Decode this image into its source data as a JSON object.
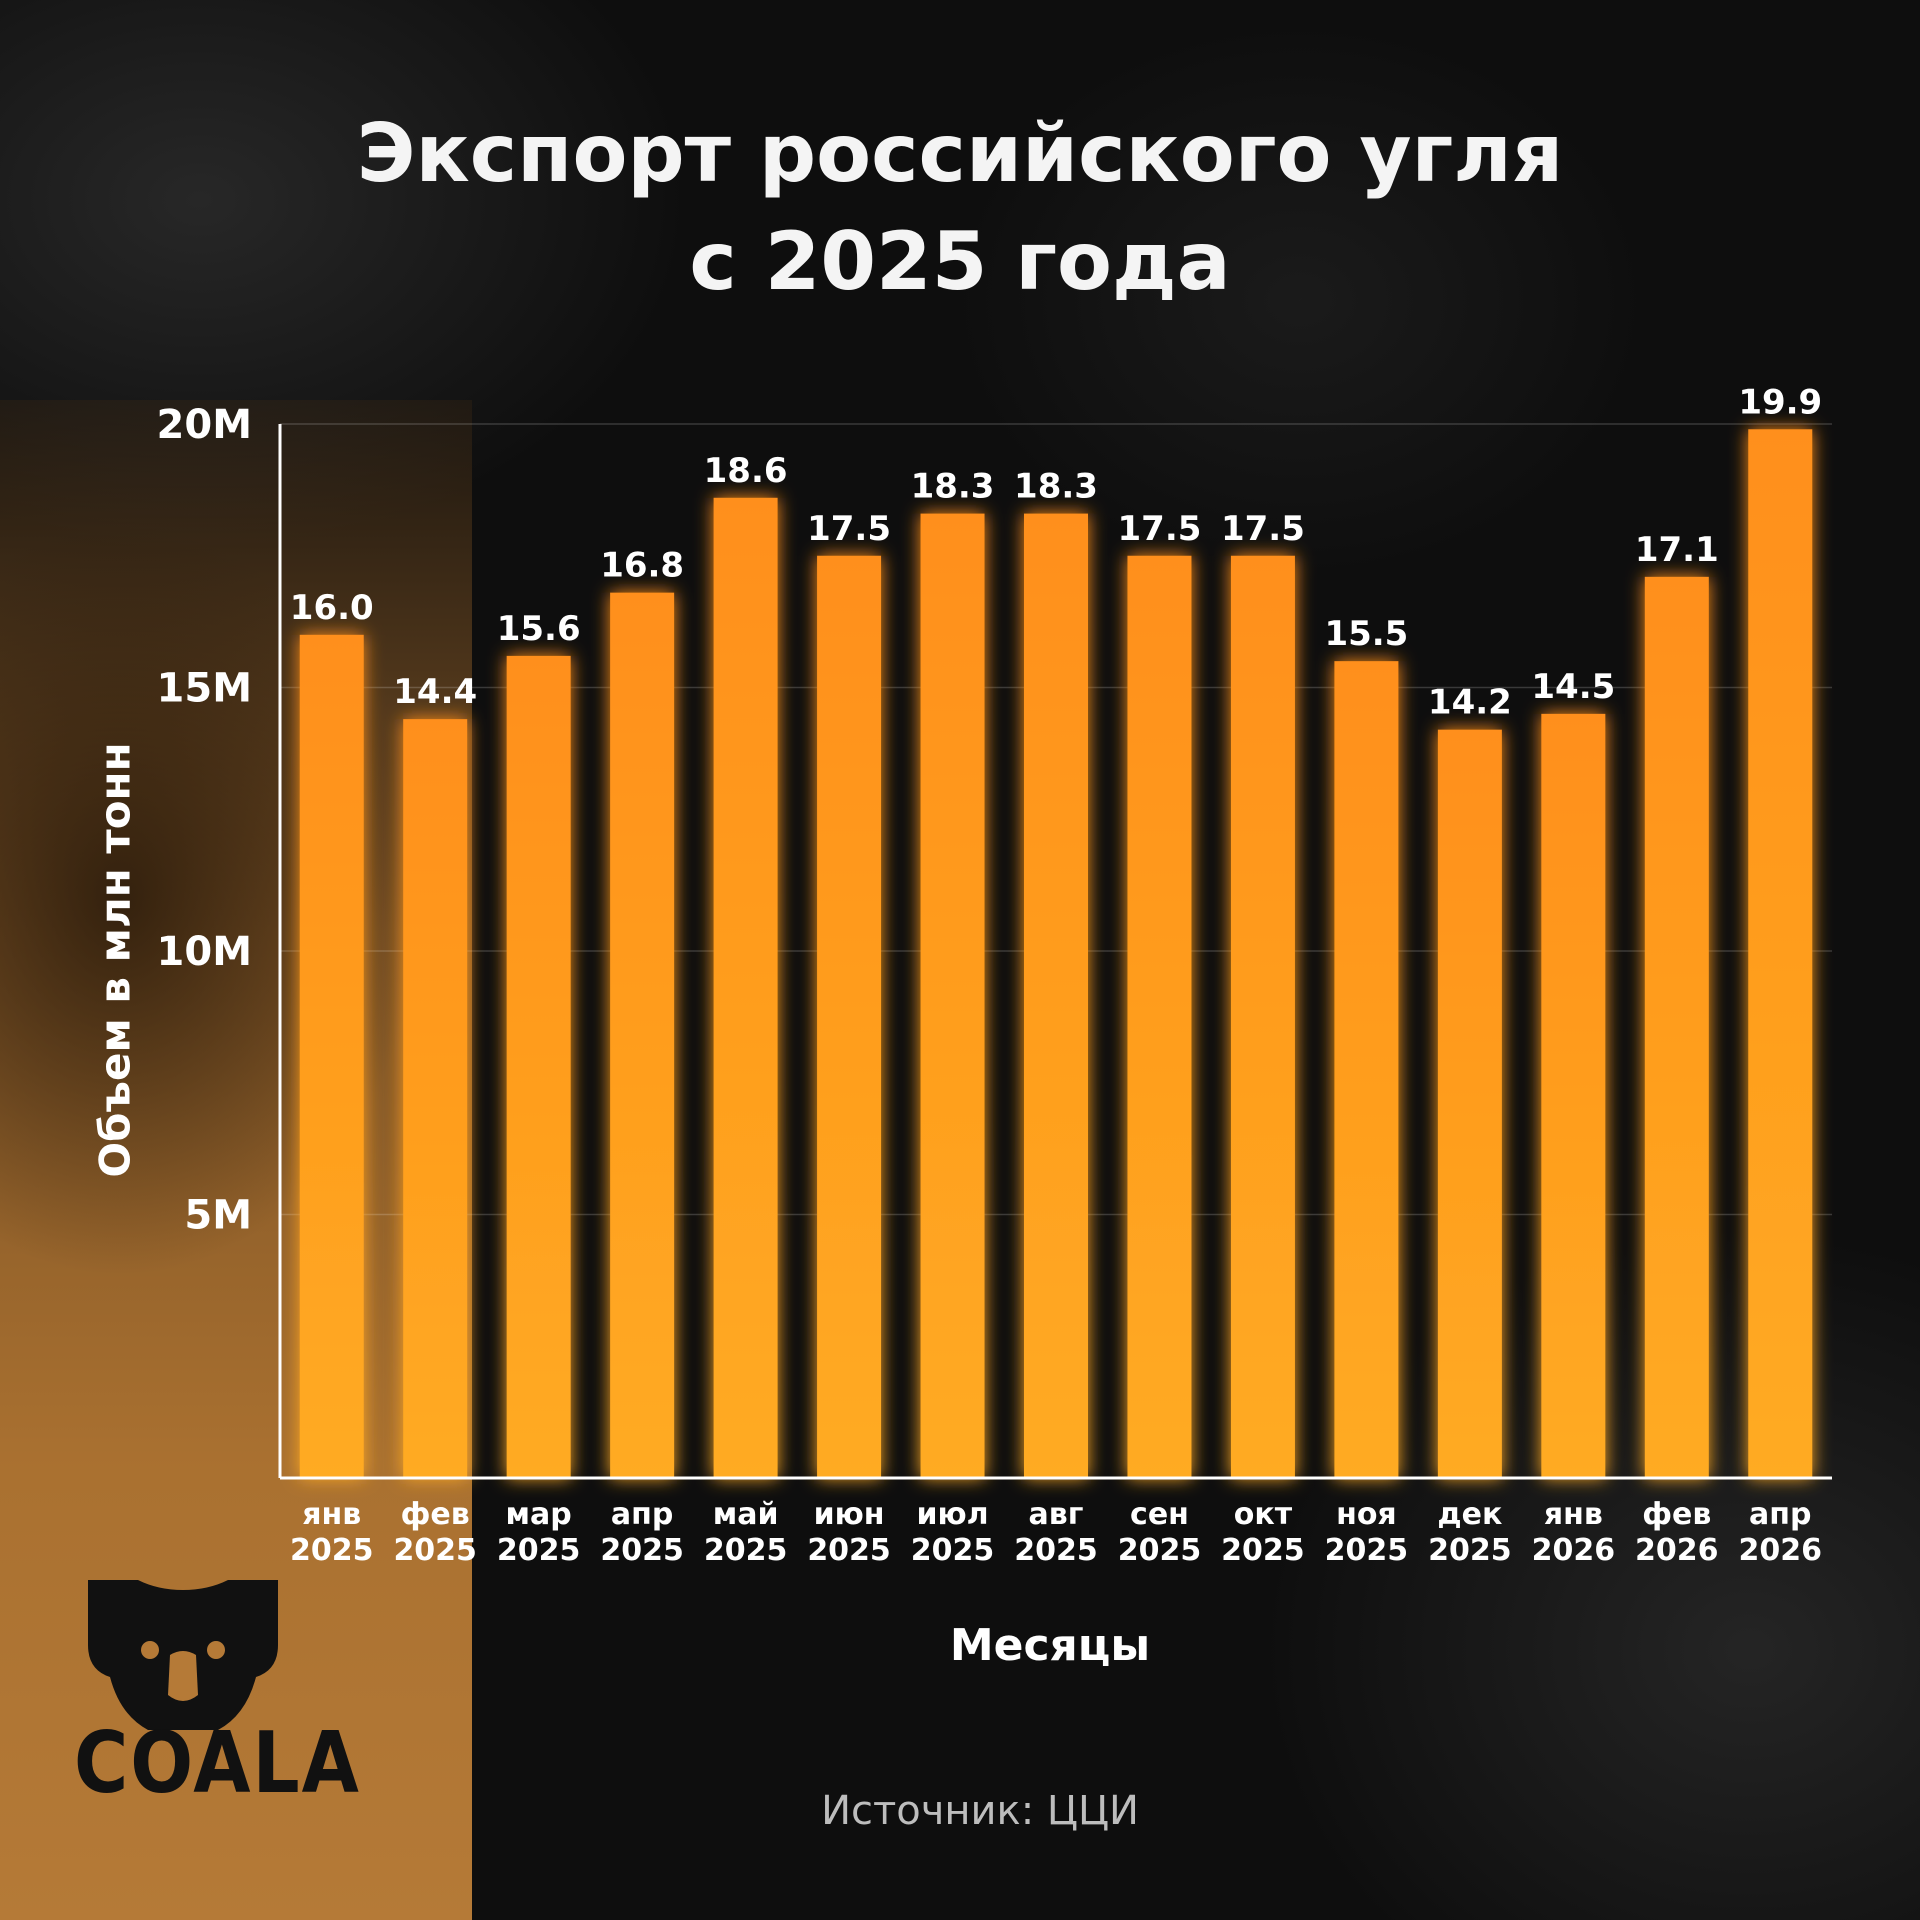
{
  "title_line1": "Экспорт российского угля",
  "title_line2": "с 2025 года",
  "source": "Источник: ЦЦИ",
  "logo_text": "COALA",
  "colors": {
    "bar_top": "#ff8f1a",
    "bar_bottom": "#ffab22",
    "background": "#0e0e0e"
  },
  "chart_data": {
    "type": "bar",
    "title": "Экспорт российского угля с 2025 года",
    "xlabel": "Месяцы",
    "ylabel": "Объем в млн тонн",
    "ylim": [
      0,
      20
    ],
    "yticks": [
      {
        "value": 5,
        "label": "5M"
      },
      {
        "value": 10,
        "label": "10M"
      },
      {
        "value": 15,
        "label": "15M"
      },
      {
        "value": 20,
        "label": "20M"
      }
    ],
    "grid": true,
    "categories": [
      {
        "month": "янв",
        "year": "2025"
      },
      {
        "month": "фев",
        "year": "2025"
      },
      {
        "month": "мар",
        "year": "2025"
      },
      {
        "month": "апр",
        "year": "2025"
      },
      {
        "month": "май",
        "year": "2025"
      },
      {
        "month": "июн",
        "year": "2025"
      },
      {
        "month": "июл",
        "year": "2025"
      },
      {
        "month": "авг",
        "year": "2025"
      },
      {
        "month": "сен",
        "year": "2025"
      },
      {
        "month": "окт",
        "year": "2025"
      },
      {
        "month": "ноя",
        "year": "2025"
      },
      {
        "month": "дек",
        "year": "2025"
      },
      {
        "month": "янв",
        "year": "2026"
      },
      {
        "month": "фев",
        "year": "2026"
      },
      {
        "month": "апр",
        "year": "2026"
      }
    ],
    "values": [
      16.0,
      14.4,
      15.6,
      16.8,
      18.6,
      17.5,
      18.3,
      18.3,
      17.5,
      17.5,
      15.5,
      14.2,
      14.5,
      17.1,
      19.9
    ],
    "value_labels": [
      "16.0",
      "14.4",
      "15.6",
      "16.8",
      "18.6",
      "17.5",
      "18.3",
      "18.3",
      "17.5",
      "17.5",
      "15.5",
      "14.2",
      "14.5",
      "17.1",
      "19.9"
    ]
  }
}
